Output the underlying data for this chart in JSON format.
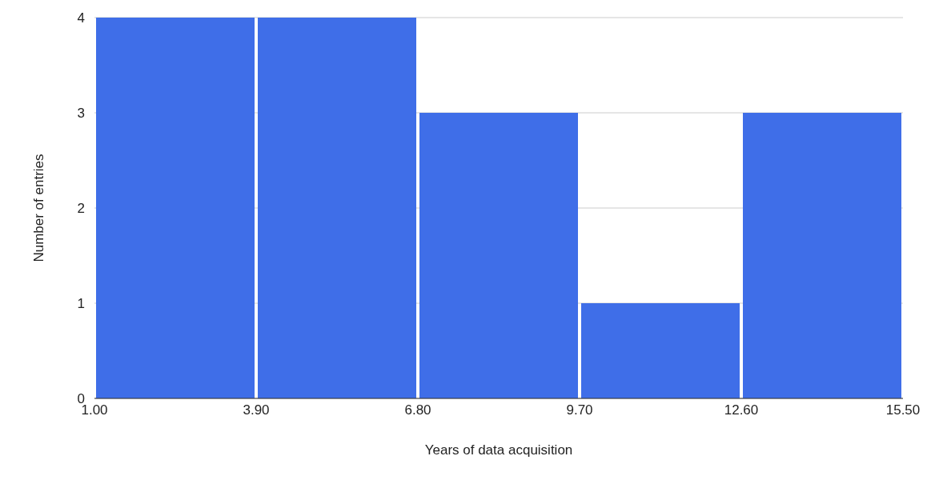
{
  "chart_data": {
    "type": "histogram",
    "xlabel": "Years of data acquisition",
    "ylabel": "Number of entries",
    "bins": [
      1,
      3.9,
      6.8,
      9.7,
      12.6,
      15.5
    ],
    "values": [
      4,
      4,
      3,
      1,
      3
    ],
    "color": "#3f6ee8",
    "xlim": [
      1,
      15.5
    ],
    "xticks": [
      {
        "value": 1,
        "label": "1.00"
      },
      {
        "value": 3.9,
        "label": "3.90"
      },
      {
        "value": 6.8,
        "label": "6.80"
      },
      {
        "value": 9.7,
        "label": "9.70"
      },
      {
        "value": 12.6,
        "label": "12.60"
      },
      {
        "value": 15.5,
        "label": "15.50"
      }
    ],
    "ylim": [
      0,
      4
    ],
    "yticks": [
      0,
      1,
      2,
      3,
      4
    ],
    "grid": "y"
  }
}
